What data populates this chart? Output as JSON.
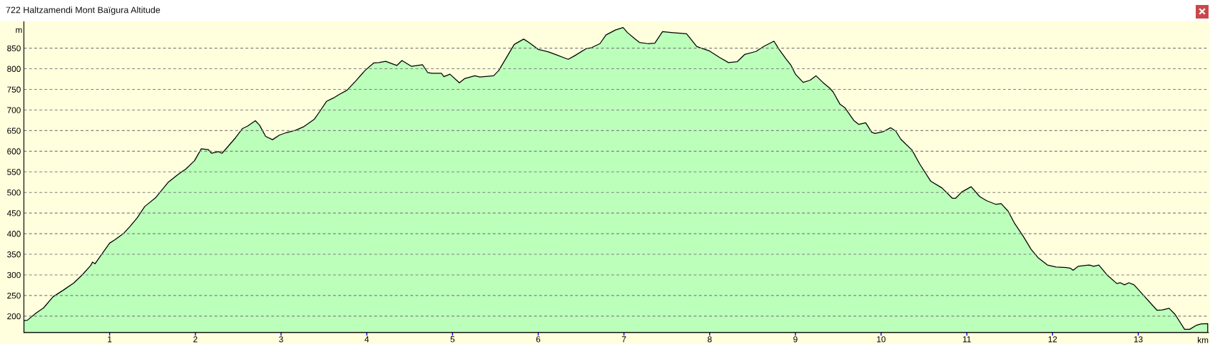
{
  "chart_data": {
    "type": "area",
    "title": "722 Haltzamendi Mont Baïgura Altitude",
    "xlabel": "km",
    "ylabel": "m",
    "x": [
      0,
      0.04,
      0.14,
      0.23,
      0.34,
      0.46,
      0.58,
      0.68,
      0.78,
      0.8,
      0.83,
      0.86,
      1.0,
      1.06,
      1.16,
      1.24,
      1.32,
      1.41,
      1.54,
      1.68,
      1.8,
      1.89,
      1.99,
      2.07,
      2.15,
      2.19,
      2.27,
      2.31,
      2.35,
      2.47,
      2.55,
      2.61,
      2.7,
      2.75,
      2.82,
      2.9,
      2.98,
      3.06,
      3.17,
      3.26,
      3.39,
      3.45,
      3.53,
      3.61,
      3.68,
      3.77,
      3.87,
      3.98,
      4.08,
      4.14,
      4.22,
      4.35,
      4.41,
      4.52,
      4.65,
      4.71,
      4.76,
      4.87,
      4.9,
      4.97,
      5.08,
      5.14,
      5.26,
      5.32,
      5.48,
      5.54,
      5.64,
      5.72,
      5.83,
      5.89,
      6.0,
      6.12,
      6.21,
      6.31,
      6.35,
      6.42,
      6.56,
      6.62,
      6.72,
      6.79,
      6.9,
      6.99,
      7.04,
      7.12,
      7.18,
      7.28,
      7.36,
      7.45,
      7.55,
      7.73,
      7.85,
      8.0,
      8.12,
      8.22,
      8.32,
      8.41,
      8.54,
      8.63,
      8.75,
      8.81,
      8.89,
      8.95,
      9.0,
      9.09,
      9.17,
      9.24,
      9.32,
      9.4,
      9.44,
      9.52,
      9.58,
      9.68,
      9.74,
      9.82,
      9.89,
      9.93,
      10.03,
      10.11,
      10.17,
      10.23,
      10.36,
      10.45,
      10.58,
      10.71,
      10.83,
      10.87,
      10.94,
      11.05,
      11.15,
      11.23,
      11.34,
      11.4,
      11.48,
      11.56,
      11.66,
      11.75,
      11.83,
      11.94,
      12.04,
      12.16,
      12.21,
      12.24,
      12.3,
      12.43,
      12.48,
      12.54,
      12.64,
      12.75,
      12.79,
      12.84,
      12.89,
      12.95,
      13.05,
      13.15,
      13.22,
      13.28,
      13.36,
      13.43,
      13.54,
      13.6,
      13.68,
      13.73,
      13.81
    ],
    "series": [
      {
        "color": "#bbffbb",
        "values": [
          189,
          190,
          207,
          220,
          247,
          263,
          280,
          300,
          323,
          331,
          327,
          336,
          377,
          385,
          400,
          418,
          438,
          466,
          488,
          524,
          544,
          557,
          577,
          606,
          604,
          595,
          599,
          595,
          604,
          633,
          655,
          661,
          674,
          663,
          636,
          628,
          639,
          645,
          651,
          659,
          678,
          696,
          721,
          729,
          738,
          748,
          770,
          796,
          814,
          815,
          818,
          808,
          820,
          806,
          810,
          791,
          789,
          789,
          781,
          787,
          766,
          776,
          783,
          780,
          783,
          796,
          831,
          859,
          872,
          864,
          847,
          841,
          834,
          826,
          823,
          831,
          849,
          851,
          861,
          882,
          894,
          900,
          888,
          874,
          864,
          861,
          862,
          890,
          888,
          885,
          854,
          843,
          827,
          815,
          817,
          835,
          842,
          854,
          867,
          847,
          824,
          808,
          787,
          767,
          772,
          783,
          767,
          753,
          744,
          714,
          705,
          675,
          665,
          669,
          646,
          643,
          648,
          657,
          649,
          629,
          603,
          569,
          527,
          511,
          486,
          486,
          501,
          514,
          490,
          480,
          471,
          473,
          455,
          424,
          393,
          362,
          342,
          324,
          319,
          318,
          316,
          311,
          321,
          324,
          321,
          324,
          299,
          279,
          281,
          276,
          281,
          276,
          253,
          230,
          214,
          215,
          219,
          204,
          168,
          168,
          178,
          181,
          182
        ]
      }
    ],
    "xlim": [
      0,
      13.82
    ],
    "ylim": [
      160,
      915
    ],
    "xticks": [
      1,
      2,
      3,
      4,
      5,
      6,
      7,
      8,
      9,
      10,
      11,
      12,
      13
    ],
    "yticks": [
      200,
      250,
      300,
      350,
      400,
      450,
      500,
      550,
      600,
      650,
      700,
      750,
      800,
      850
    ],
    "grid": "y"
  }
}
